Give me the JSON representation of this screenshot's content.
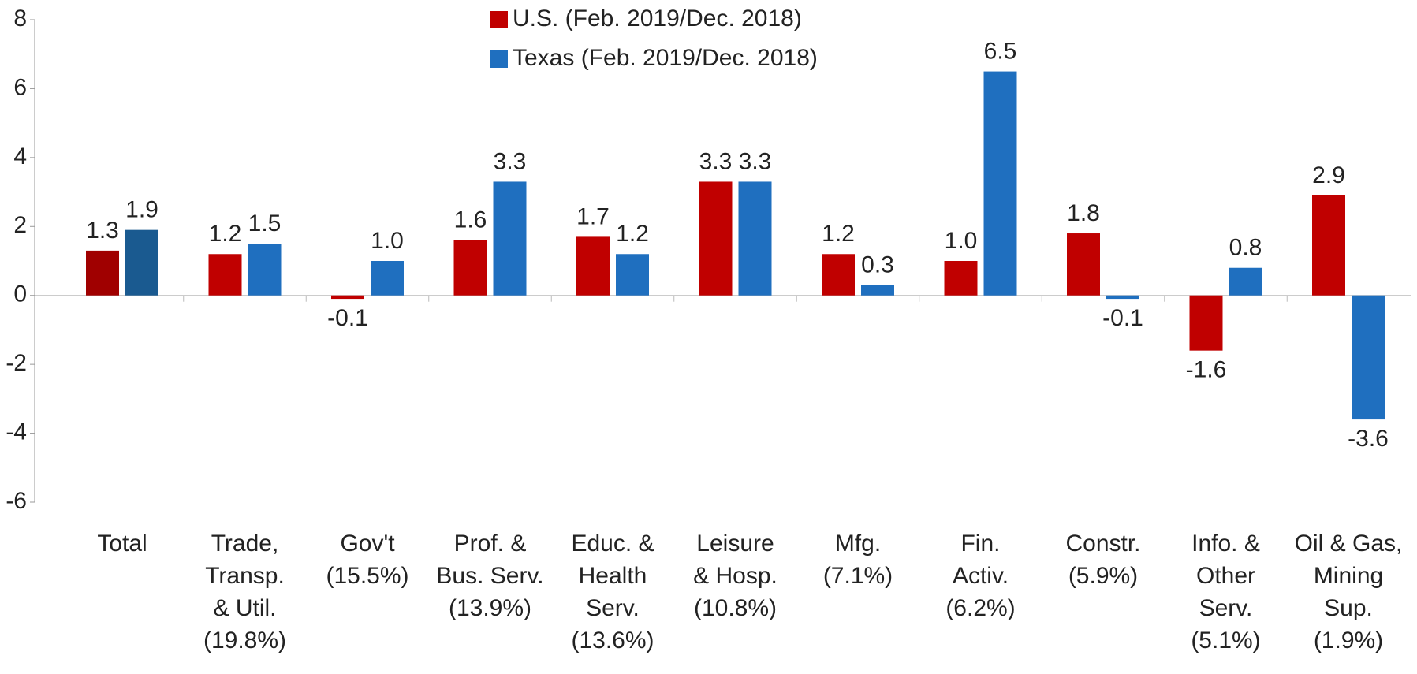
{
  "chart_data": {
    "type": "bar",
    "categories": [
      [
        "Total"
      ],
      [
        "Trade,",
        "Transp.",
        "& Util.",
        "(19.8%)"
      ],
      [
        "Gov't",
        "(15.5%)"
      ],
      [
        "Prof. &",
        "Bus. Serv.",
        "(13.9%)"
      ],
      [
        "Educ. &",
        "Health",
        "Serv.",
        "(13.6%)"
      ],
      [
        "Leisure",
        "& Hosp.",
        "(10.8%)"
      ],
      [
        "Mfg.",
        "(7.1%)"
      ],
      [
        "Fin.",
        "Activ.",
        "(6.2%)"
      ],
      [
        "Constr.",
        "(5.9%)"
      ],
      [
        "Info. &",
        "Other",
        "Serv.",
        "(5.1%)"
      ],
      [
        "Oil & Gas,",
        "Mining",
        "Sup.",
        "(1.9%)"
      ]
    ],
    "series": [
      {
        "name": "U.S. (Feb. 2019/Dec. 2018)",
        "color": "#c00000",
        "colors": [
          "#a00000",
          "#c00000",
          "#c00000",
          "#c00000",
          "#c00000",
          "#c00000",
          "#c00000",
          "#c00000",
          "#c00000",
          "#c00000",
          "#c00000"
        ],
        "values": [
          1.3,
          1.2,
          -0.1,
          1.6,
          1.7,
          3.3,
          1.2,
          1.0,
          1.8,
          -1.6,
          2.9
        ],
        "value_labels": [
          "1.3",
          "1.2",
          "-0.1",
          "1.6",
          "1.7",
          "3.3",
          "1.2",
          "1.0",
          "1.8",
          "-1.6",
          "2.9"
        ]
      },
      {
        "name": "Texas (Feb. 2019/Dec. 2018)",
        "color": "#1f6fbf",
        "colors": [
          "#1a5a90",
          "#1f6fbf",
          "#1f6fbf",
          "#1f6fbf",
          "#1f6fbf",
          "#1f6fbf",
          "#1f6fbf",
          "#1f6fbf",
          "#1f6fbf",
          "#1f6fbf",
          "#1f6fbf"
        ],
        "values": [
          1.9,
          1.5,
          1.0,
          3.3,
          1.2,
          3.3,
          0.3,
          6.5,
          -0.1,
          0.8,
          -3.6
        ],
        "value_labels": [
          "1.9",
          "1.5",
          "1.0",
          "3.3",
          "1.2",
          "3.3",
          "0.3",
          "6.5",
          "-0.1",
          "0.8",
          "-3.6"
        ]
      }
    ],
    "ylim": [
      -6,
      8
    ],
    "yticks": [
      -6,
      -4,
      -2,
      0,
      2,
      4,
      6,
      8
    ],
    "legend": "top",
    "grid": false
  }
}
